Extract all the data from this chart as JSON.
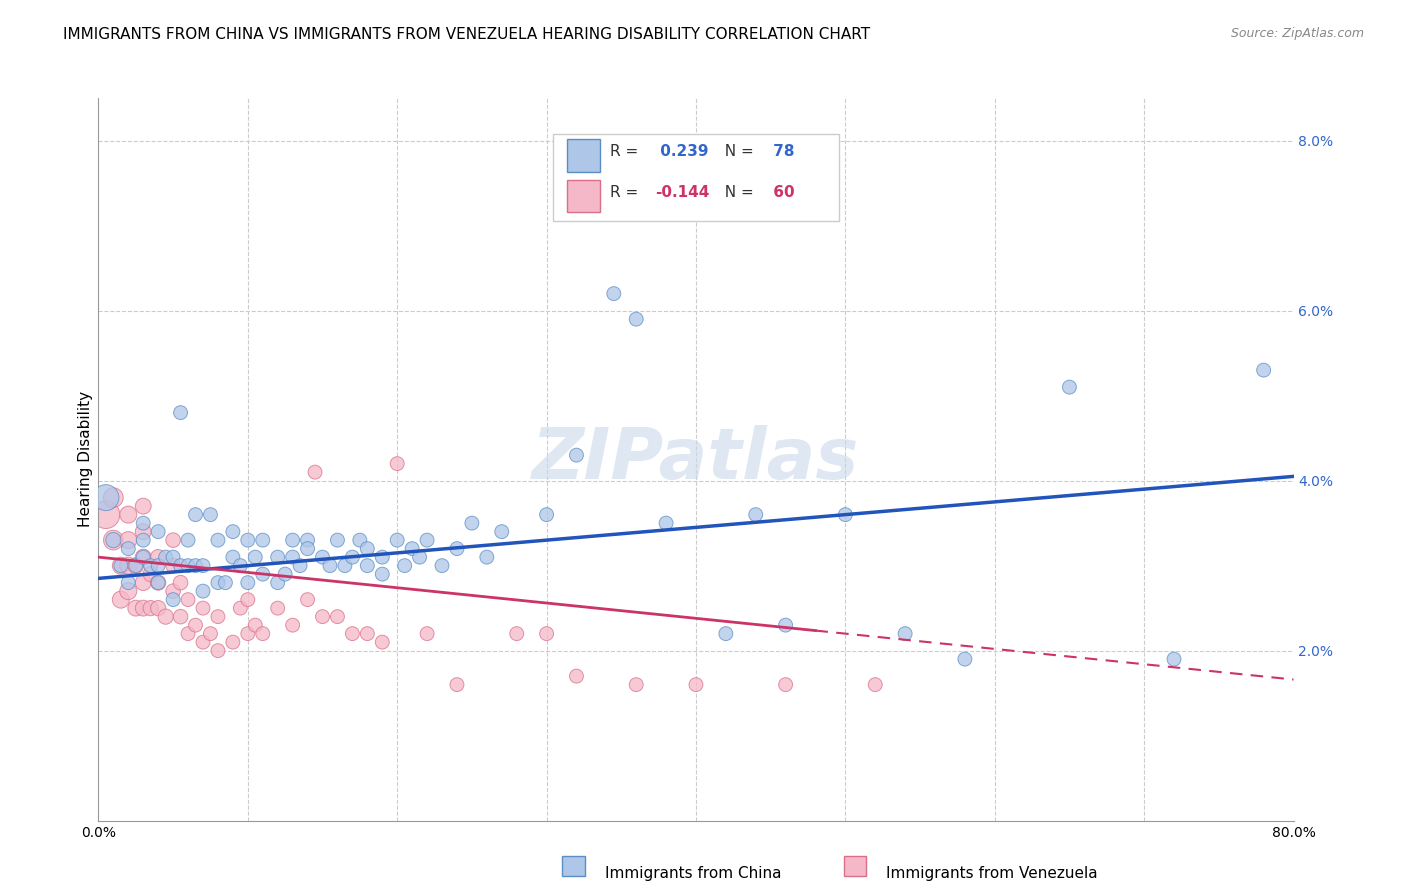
{
  "title": "IMMIGRANTS FROM CHINA VS IMMIGRANTS FROM VENEZUELA HEARING DISABILITY CORRELATION CHART",
  "source": "Source: ZipAtlas.com",
  "ylabel": "Hearing Disability",
  "xlim": [
    0.0,
    0.8
  ],
  "ylim": [
    0.0,
    0.085
  ],
  "xticks": [
    0.0,
    0.1,
    0.2,
    0.3,
    0.4,
    0.5,
    0.6,
    0.7,
    0.8
  ],
  "yticks": [
    0.0,
    0.02,
    0.04,
    0.06,
    0.08
  ],
  "ytick_labels": [
    "",
    "2.0%",
    "4.0%",
    "6.0%",
    "8.0%"
  ],
  "china_color": "#aec6e8",
  "china_edge_color": "#5b8ec4",
  "venezuela_color": "#f5b8c8",
  "venezuela_edge_color": "#d9708a",
  "trend_china_color": "#2255bb",
  "trend_venezuela_color": "#cc3366",
  "R_china": 0.239,
  "N_china": 78,
  "R_venezuela": -0.144,
  "N_venezuela": 60,
  "legend_china_label": "Immigrants from China",
  "legend_venezuela_label": "Immigrants from Venezuela",
  "watermark": "ZIPatlas",
  "china_x": [
    0.005,
    0.01,
    0.015,
    0.02,
    0.02,
    0.025,
    0.03,
    0.03,
    0.03,
    0.035,
    0.04,
    0.04,
    0.04,
    0.045,
    0.05,
    0.05,
    0.055,
    0.055,
    0.06,
    0.06,
    0.065,
    0.065,
    0.07,
    0.07,
    0.075,
    0.08,
    0.08,
    0.085,
    0.09,
    0.09,
    0.095,
    0.1,
    0.1,
    0.105,
    0.11,
    0.11,
    0.12,
    0.12,
    0.125,
    0.13,
    0.13,
    0.135,
    0.14,
    0.14,
    0.15,
    0.155,
    0.16,
    0.165,
    0.17,
    0.175,
    0.18,
    0.18,
    0.19,
    0.19,
    0.2,
    0.205,
    0.21,
    0.215,
    0.22,
    0.23,
    0.24,
    0.25,
    0.26,
    0.27,
    0.3,
    0.32,
    0.345,
    0.36,
    0.38,
    0.42,
    0.44,
    0.46,
    0.5,
    0.54,
    0.58,
    0.65,
    0.72,
    0.78
  ],
  "china_y": [
    0.038,
    0.033,
    0.03,
    0.028,
    0.032,
    0.03,
    0.031,
    0.033,
    0.035,
    0.03,
    0.028,
    0.03,
    0.034,
    0.031,
    0.026,
    0.031,
    0.048,
    0.03,
    0.03,
    0.033,
    0.03,
    0.036,
    0.027,
    0.03,
    0.036,
    0.028,
    0.033,
    0.028,
    0.031,
    0.034,
    0.03,
    0.033,
    0.028,
    0.031,
    0.029,
    0.033,
    0.028,
    0.031,
    0.029,
    0.033,
    0.031,
    0.03,
    0.033,
    0.032,
    0.031,
    0.03,
    0.033,
    0.03,
    0.031,
    0.033,
    0.03,
    0.032,
    0.029,
    0.031,
    0.033,
    0.03,
    0.032,
    0.031,
    0.033,
    0.03,
    0.032,
    0.035,
    0.031,
    0.034,
    0.036,
    0.043,
    0.062,
    0.059,
    0.035,
    0.022,
    0.036,
    0.023,
    0.036,
    0.022,
    0.019,
    0.051,
    0.019,
    0.053
  ],
  "venezuela_x": [
    0.005,
    0.01,
    0.01,
    0.015,
    0.015,
    0.02,
    0.02,
    0.02,
    0.02,
    0.025,
    0.025,
    0.03,
    0.03,
    0.03,
    0.03,
    0.03,
    0.035,
    0.035,
    0.04,
    0.04,
    0.04,
    0.045,
    0.05,
    0.05,
    0.05,
    0.055,
    0.055,
    0.06,
    0.06,
    0.065,
    0.07,
    0.07,
    0.075,
    0.08,
    0.08,
    0.09,
    0.095,
    0.1,
    0.1,
    0.105,
    0.11,
    0.12,
    0.13,
    0.14,
    0.145,
    0.15,
    0.16,
    0.17,
    0.18,
    0.19,
    0.2,
    0.22,
    0.24,
    0.28,
    0.3,
    0.32,
    0.36,
    0.4,
    0.46,
    0.52
  ],
  "venezuela_y": [
    0.036,
    0.033,
    0.038,
    0.026,
    0.03,
    0.027,
    0.03,
    0.033,
    0.036,
    0.025,
    0.03,
    0.025,
    0.028,
    0.031,
    0.034,
    0.037,
    0.025,
    0.029,
    0.025,
    0.028,
    0.031,
    0.024,
    0.027,
    0.03,
    0.033,
    0.024,
    0.028,
    0.022,
    0.026,
    0.023,
    0.021,
    0.025,
    0.022,
    0.02,
    0.024,
    0.021,
    0.025,
    0.022,
    0.026,
    0.023,
    0.022,
    0.025,
    0.023,
    0.026,
    0.041,
    0.024,
    0.024,
    0.022,
    0.022,
    0.021,
    0.042,
    0.022,
    0.016,
    0.022,
    0.022,
    0.017,
    0.016,
    0.016,
    0.016,
    0.016
  ],
  "china_sizes": [
    350,
    120,
    100,
    100,
    100,
    100,
    100,
    100,
    100,
    100,
    100,
    100,
    100,
    100,
    100,
    100,
    100,
    100,
    100,
    100,
    100,
    100,
    100,
    100,
    100,
    100,
    100,
    100,
    100,
    100,
    100,
    100,
    100,
    100,
    100,
    100,
    100,
    100,
    100,
    100,
    100,
    100,
    100,
    100,
    100,
    100,
    100,
    100,
    100,
    100,
    100,
    100,
    100,
    100,
    100,
    100,
    100,
    100,
    100,
    100,
    100,
    100,
    100,
    100,
    100,
    100,
    100,
    100,
    100,
    100,
    100,
    100,
    100,
    100,
    100,
    100,
    100,
    100
  ],
  "venezuela_sizes": [
    400,
    200,
    200,
    150,
    150,
    150,
    150,
    150,
    150,
    130,
    130,
    130,
    130,
    130,
    130,
    130,
    120,
    120,
    120,
    120,
    120,
    120,
    110,
    110,
    110,
    110,
    110,
    100,
    100,
    100,
    100,
    100,
    100,
    100,
    100,
    100,
    100,
    100,
    100,
    100,
    100,
    100,
    100,
    100,
    100,
    100,
    100,
    100,
    100,
    100,
    100,
    100,
    100,
    100,
    100,
    100,
    100,
    100,
    100,
    100
  ],
  "background_color": "#ffffff",
  "grid_color": "#cccccc",
  "title_fontsize": 11,
  "axis_label_fontsize": 11,
  "tick_fontsize": 10,
  "trend_china_intercept": 0.0285,
  "trend_china_slope": 0.015,
  "trend_venezuela_intercept": 0.031,
  "trend_venezuela_slope": -0.018
}
